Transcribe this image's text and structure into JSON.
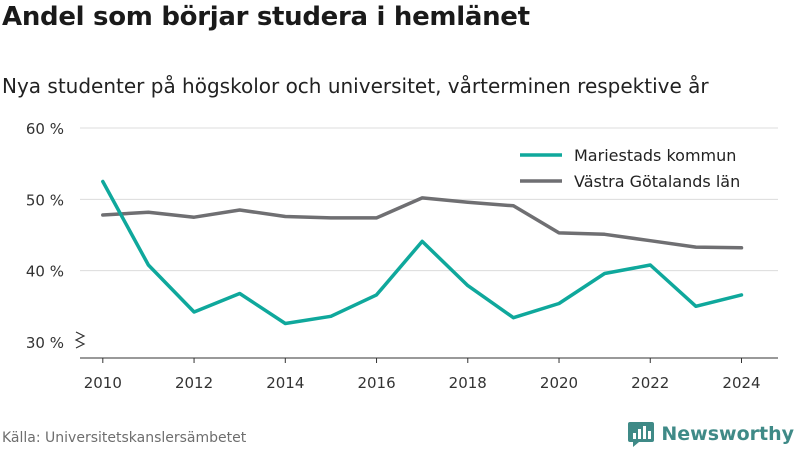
{
  "title": "Andel som börjar studera i hemlänet",
  "subtitle": "Nya studenter på högskolor och universitet, vårterminen respektive år",
  "source": "Källa: Universitetskanslersämbetet",
  "brand": {
    "name": "Newsworthy",
    "icon": "bar-chart-logo-icon",
    "color": "#3f8a87"
  },
  "chart_data": {
    "type": "line",
    "x": [
      2010,
      2011,
      2012,
      2013,
      2014,
      2015,
      2016,
      2017,
      2018,
      2019,
      2020,
      2021,
      2022,
      2023,
      2024
    ],
    "x_ticks": [
      2010,
      2012,
      2014,
      2016,
      2018,
      2020,
      2022,
      2024
    ],
    "x_tick_labels": [
      "2010",
      "2012",
      "2014",
      "2016",
      "2018",
      "2020",
      "2022",
      "2024"
    ],
    "y_ticks": [
      30,
      40,
      50,
      60
    ],
    "y_tick_labels": [
      "30 %",
      "40 %",
      "50 %",
      "60 %"
    ],
    "ylim": [
      30,
      60
    ],
    "y_axis_break": true,
    "grid": true,
    "legend_position": "top-right",
    "series": [
      {
        "name": "Mariestads kommun",
        "color": "#0fa89c",
        "values": [
          52.5,
          40.8,
          34.2,
          36.8,
          32.6,
          33.6,
          36.6,
          44.1,
          37.9,
          33.4,
          35.4,
          39.6,
          40.8,
          35.0,
          36.6
        ]
      },
      {
        "name": "Västra Götalands län",
        "color": "#6f6f72",
        "values": [
          47.8,
          48.2,
          47.5,
          48.5,
          47.6,
          47.4,
          47.4,
          50.2,
          49.6,
          49.1,
          45.3,
          45.1,
          44.2,
          43.3,
          43.2
        ]
      }
    ]
  }
}
